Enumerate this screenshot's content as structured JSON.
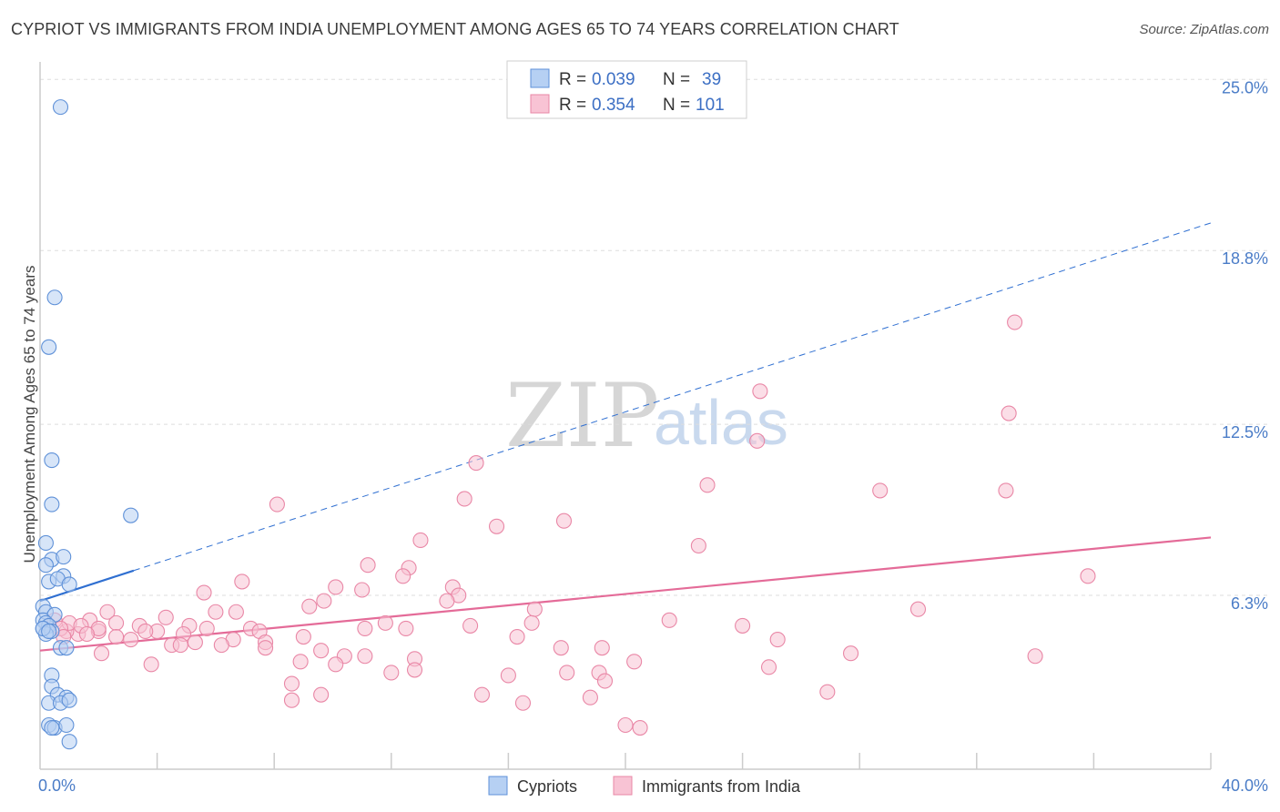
{
  "title": "CYPRIOT VS IMMIGRANTS FROM INDIA UNEMPLOYMENT AMONG AGES 65 TO 74 YEARS CORRELATION CHART",
  "source": "Source: ZipAtlas.com",
  "watermark": {
    "zip": "ZIP",
    "atlas": "atlas"
  },
  "colors": {
    "cypriot_fill": "#b6d0f3",
    "cypriot_stroke": "#5f91d8",
    "cypriot_line": "#2f6fd1",
    "india_fill": "#f8c3d4",
    "india_stroke": "#e987a6",
    "india_line": "#e46b98",
    "tick_label": "#4a7cc7",
    "grid": "#dddddd"
  },
  "stats": {
    "cypriot": {
      "r_label": "R = ",
      "r": "0.039",
      "n_label": "N = ",
      "n": "39"
    },
    "india": {
      "r_label": "R = ",
      "r": "0.354",
      "n_label": "N = ",
      "n": "101"
    }
  },
  "chart_data": {
    "type": "scatter",
    "title": "CYPRIOT VS IMMIGRANTS FROM INDIA UNEMPLOYMENT AMONG AGES 65 TO 74 YEARS CORRELATION CHART",
    "xlabel": "",
    "ylabel": "Unemployment Among Ages 65 to 74 years",
    "xlim": [
      0,
      40
    ],
    "ylim": [
      0,
      26
    ],
    "x_tick_labels": [
      {
        "value": 0,
        "label": "0.0%"
      },
      {
        "value": 40,
        "label": "40.0%"
      }
    ],
    "y_tick_labels": [
      {
        "value": 6.3,
        "label": "6.3%"
      },
      {
        "value": 12.5,
        "label": "12.5%"
      },
      {
        "value": 18.8,
        "label": "18.8%"
      },
      {
        "value": 25.0,
        "label": "25.0%"
      }
    ],
    "grid": true,
    "legend_position": "bottom-center",
    "series": [
      {
        "name": "Cypriots",
        "key": "cypriot",
        "trend": {
          "solid": [
            [
              0,
              6.1
            ],
            [
              3.2,
              7.2
            ]
          ],
          "dashed": [
            [
              3.2,
              7.2
            ],
            [
              40,
              19.8
            ]
          ]
        },
        "points": [
          [
            0.7,
            24.0
          ],
          [
            0.5,
            17.1
          ],
          [
            0.3,
            15.3
          ],
          [
            0.4,
            11.2
          ],
          [
            0.4,
            9.6
          ],
          [
            3.1,
            9.2
          ],
          [
            0.2,
            8.2
          ],
          [
            0.4,
            7.6
          ],
          [
            0.8,
            7.7
          ],
          [
            0.2,
            7.4
          ],
          [
            0.8,
            7.0
          ],
          [
            0.3,
            6.8
          ],
          [
            0.6,
            6.9
          ],
          [
            1.0,
            6.7
          ],
          [
            0.1,
            5.9
          ],
          [
            0.2,
            5.7
          ],
          [
            0.5,
            5.6
          ],
          [
            0.1,
            5.4
          ],
          [
            0.2,
            5.3
          ],
          [
            0.3,
            5.2
          ],
          [
            0.1,
            5.1
          ],
          [
            0.4,
            5.0
          ],
          [
            0.2,
            4.9
          ],
          [
            0.1,
            5.1
          ],
          [
            0.3,
            5.0
          ],
          [
            0.7,
            4.4
          ],
          [
            0.9,
            4.4
          ],
          [
            0.4,
            3.4
          ],
          [
            0.4,
            3.0
          ],
          [
            0.6,
            2.7
          ],
          [
            0.9,
            2.6
          ],
          [
            0.3,
            2.4
          ],
          [
            0.7,
            2.4
          ],
          [
            1.0,
            2.5
          ],
          [
            0.3,
            1.6
          ],
          [
            0.5,
            1.5
          ],
          [
            0.9,
            1.6
          ],
          [
            1.0,
            1.0
          ],
          [
            0.4,
            1.5
          ]
        ]
      },
      {
        "name": "Immigrants from India",
        "key": "india",
        "trend": {
          "solid": [
            [
              0,
              4.3
            ],
            [
              40,
              8.4
            ]
          ]
        },
        "points": [
          [
            33.3,
            16.2
          ],
          [
            24.6,
            13.7
          ],
          [
            33.1,
            12.9
          ],
          [
            24.5,
            11.9
          ],
          [
            14.9,
            11.1
          ],
          [
            22.8,
            10.3
          ],
          [
            28.7,
            10.1
          ],
          [
            33.0,
            10.1
          ],
          [
            14.5,
            9.8
          ],
          [
            8.1,
            9.6
          ],
          [
            17.9,
            9.0
          ],
          [
            15.6,
            8.8
          ],
          [
            13.0,
            8.3
          ],
          [
            22.5,
            8.1
          ],
          [
            11.2,
            7.4
          ],
          [
            12.6,
            7.3
          ],
          [
            12.4,
            7.0
          ],
          [
            35.8,
            7.0
          ],
          [
            6.9,
            6.8
          ],
          [
            10.1,
            6.6
          ],
          [
            14.1,
            6.6
          ],
          [
            11.0,
            6.5
          ],
          [
            5.6,
            6.4
          ],
          [
            14.3,
            6.3
          ],
          [
            13.9,
            6.1
          ],
          [
            9.7,
            6.1
          ],
          [
            9.2,
            5.9
          ],
          [
            30.0,
            5.8
          ],
          [
            16.9,
            5.8
          ],
          [
            6.0,
            5.7
          ],
          [
            6.7,
            5.7
          ],
          [
            2.3,
            5.7
          ],
          [
            4.3,
            5.5
          ],
          [
            1.7,
            5.4
          ],
          [
            21.5,
            5.4
          ],
          [
            2.6,
            5.3
          ],
          [
            11.8,
            5.3
          ],
          [
            16.8,
            5.3
          ],
          [
            14.7,
            5.2
          ],
          [
            24.0,
            5.2
          ],
          [
            3.4,
            5.2
          ],
          [
            5.1,
            5.2
          ],
          [
            7.2,
            5.1
          ],
          [
            11.1,
            5.1
          ],
          [
            5.7,
            5.1
          ],
          [
            7.5,
            5.0
          ],
          [
            12.5,
            5.1
          ],
          [
            4.0,
            5.0
          ],
          [
            2.0,
            5.0
          ],
          [
            3.6,
            5.0
          ],
          [
            4.9,
            4.9
          ],
          [
            1.3,
            4.9
          ],
          [
            0.9,
            5.0
          ],
          [
            0.5,
            5.4
          ],
          [
            1.0,
            5.3
          ],
          [
            0.7,
            5.1
          ],
          [
            1.4,
            5.2
          ],
          [
            2.0,
            5.1
          ],
          [
            9.0,
            4.8
          ],
          [
            16.3,
            4.8
          ],
          [
            3.1,
            4.7
          ],
          [
            25.2,
            4.7
          ],
          [
            6.6,
            4.7
          ],
          [
            5.3,
            4.6
          ],
          [
            7.7,
            4.6
          ],
          [
            4.5,
            4.5
          ],
          [
            4.8,
            4.5
          ],
          [
            6.2,
            4.5
          ],
          [
            7.7,
            4.4
          ],
          [
            17.8,
            4.4
          ],
          [
            19.2,
            4.4
          ],
          [
            9.6,
            4.3
          ],
          [
            2.1,
            4.2
          ],
          [
            27.7,
            4.2
          ],
          [
            34.0,
            4.1
          ],
          [
            10.4,
            4.1
          ],
          [
            11.1,
            4.1
          ],
          [
            12.8,
            4.0
          ],
          [
            8.9,
            3.9
          ],
          [
            20.3,
            3.9
          ],
          [
            10.1,
            3.8
          ],
          [
            3.8,
            3.8
          ],
          [
            24.9,
            3.7
          ],
          [
            12.8,
            3.6
          ],
          [
            12.0,
            3.5
          ],
          [
            18.0,
            3.5
          ],
          [
            19.1,
            3.5
          ],
          [
            16.0,
            3.4
          ],
          [
            19.3,
            3.2
          ],
          [
            8.6,
            3.1
          ],
          [
            26.9,
            2.8
          ],
          [
            9.6,
            2.7
          ],
          [
            15.1,
            2.7
          ],
          [
            18.8,
            2.6
          ],
          [
            8.6,
            2.5
          ],
          [
            16.5,
            2.4
          ],
          [
            20.0,
            1.6
          ],
          [
            20.5,
            1.5
          ],
          [
            0.8,
            4.8
          ],
          [
            1.6,
            4.9
          ],
          [
            2.6,
            4.8
          ]
        ]
      }
    ]
  }
}
